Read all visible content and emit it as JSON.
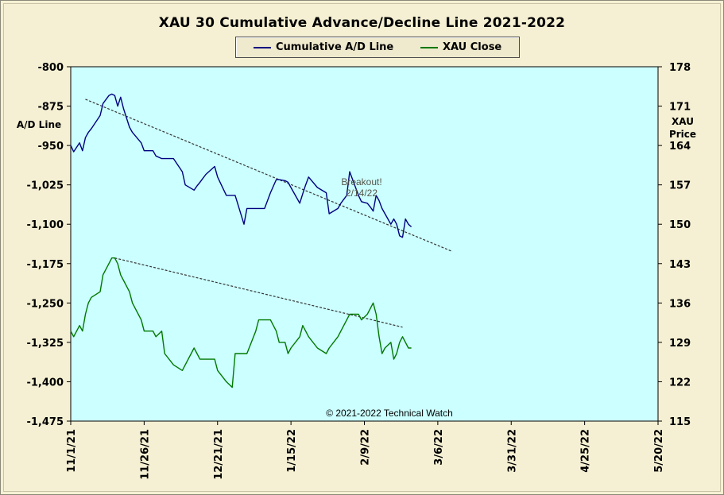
{
  "chart_data": {
    "type": "line",
    "title": "XAU 30 Cumulative Advance/Decline Line 2021-2022",
    "y_left_label": [
      "A/D Line"
    ],
    "y_right_label": [
      "XAU",
      "Price"
    ],
    "y_left_ticks": [
      -800,
      -875,
      -950,
      -1025,
      -1100,
      -1175,
      -1250,
      -1325,
      -1400,
      -1475
    ],
    "y_left_tick_labels": [
      "-800",
      "-875",
      "-950",
      "-1,025",
      "-1,100",
      "-1,175",
      "-1,250",
      "-1,325",
      "-1,400",
      "-1,475"
    ],
    "y_left_range": [
      -1475,
      -800
    ],
    "y_right_ticks": [
      178,
      171,
      164,
      157,
      150,
      143,
      136,
      129,
      122,
      115
    ],
    "y_right_range": [
      115,
      178
    ],
    "x_tick_labels": [
      "11/1/21",
      "11/26/21",
      "12/21/21",
      "1/15/22",
      "2/9/22",
      "3/6/22",
      "3/31/22",
      "4/25/22",
      "5/20/22"
    ],
    "x_range_days": [
      0,
      200
    ],
    "x_unit": "days since 11/1/21",
    "grid": false,
    "legend_position": "top-center",
    "series": [
      {
        "name": "Cumulative A/D Line",
        "axis": "left",
        "color": "#000080",
        "x": [
          0,
          1,
          3,
          4,
          5,
          6,
          7,
          10,
          11,
          13,
          14,
          15,
          16,
          17,
          18,
          20,
          21,
          24,
          25,
          28,
          29,
          31,
          32,
          35,
          38,
          39,
          42,
          43,
          44,
          46,
          49,
          50,
          53,
          55,
          56,
          59,
          60,
          63,
          64,
          66,
          68,
          70,
          71,
          73,
          74,
          75,
          78,
          79,
          80,
          81,
          84,
          87,
          88,
          91,
          92,
          94,
          95,
          98,
          99,
          101,
          102,
          103,
          104,
          105,
          106,
          107,
          109,
          110,
          111,
          112,
          113,
          114,
          115,
          116
        ],
        "y": [
          -950,
          -962,
          -945,
          -960,
          -935,
          -925,
          -918,
          -893,
          -870,
          -855,
          -852,
          -855,
          -875,
          -858,
          -880,
          -915,
          -925,
          -945,
          -960,
          -960,
          -970,
          -975,
          -975,
          -975,
          -1000,
          -1025,
          -1035,
          -1027,
          -1020,
          -1005,
          -990,
          -1010,
          -1045,
          -1045,
          -1045,
          -1100,
          -1070,
          -1070,
          -1070,
          -1070,
          -1040,
          -1015,
          -1015,
          -1017,
          -1020,
          -1030,
          -1060,
          -1042,
          -1025,
          -1010,
          -1030,
          -1040,
          -1080,
          -1070,
          -1060,
          -1045,
          -1000,
          -1045,
          -1057,
          -1060,
          -1067,
          -1075,
          -1045,
          -1055,
          -1070,
          -1080,
          -1100,
          -1090,
          -1100,
          -1122,
          -1125,
          -1090,
          -1100,
          -1105
        ]
      },
      {
        "name": "XAU Close",
        "axis": "right",
        "color": "#007800",
        "x": [
          0,
          1,
          3,
          4,
          5,
          6,
          7,
          10,
          11,
          13,
          14,
          15,
          16,
          17,
          18,
          20,
          21,
          24,
          25,
          28,
          29,
          31,
          32,
          35,
          38,
          39,
          42,
          43,
          44,
          46,
          49,
          50,
          53,
          55,
          56,
          59,
          60,
          63,
          64,
          66,
          68,
          70,
          71,
          73,
          74,
          75,
          78,
          79,
          80,
          81,
          84,
          87,
          88,
          91,
          92,
          94,
          95,
          98,
          99,
          101,
          102,
          103,
          104,
          105,
          106,
          107,
          109,
          110,
          111,
          112,
          113,
          114,
          115,
          116
        ],
        "y": [
          131,
          130,
          132,
          131,
          134,
          136,
          137,
          138,
          141,
          143,
          144,
          144,
          143,
          141,
          140,
          138,
          136,
          133,
          131,
          131,
          130,
          131,
          127,
          125,
          124,
          125,
          128,
          127,
          126,
          126,
          126,
          124,
          122,
          121,
          127,
          127,
          127,
          131,
          133,
          133,
          133,
          131,
          129,
          129,
          127,
          128,
          130,
          132,
          131,
          130,
          128,
          127,
          128,
          130,
          131,
          133,
          134,
          134,
          133,
          134,
          135,
          136,
          134,
          130,
          127,
          128,
          129,
          126,
          127,
          129,
          130,
          129,
          128,
          128
        ]
      }
    ],
    "trendlines": [
      {
        "axis": "left",
        "from": [
          5,
          -862
        ],
        "to": [
          130,
          -1152
        ]
      },
      {
        "axis": "right",
        "from": [
          15,
          144
        ],
        "to": [
          113,
          131.7
        ]
      }
    ],
    "annotations": {
      "breakout": [
        "Breakout!",
        "2/14/22"
      ],
      "credit": "© 2021-2022  Technical  Watch"
    }
  }
}
